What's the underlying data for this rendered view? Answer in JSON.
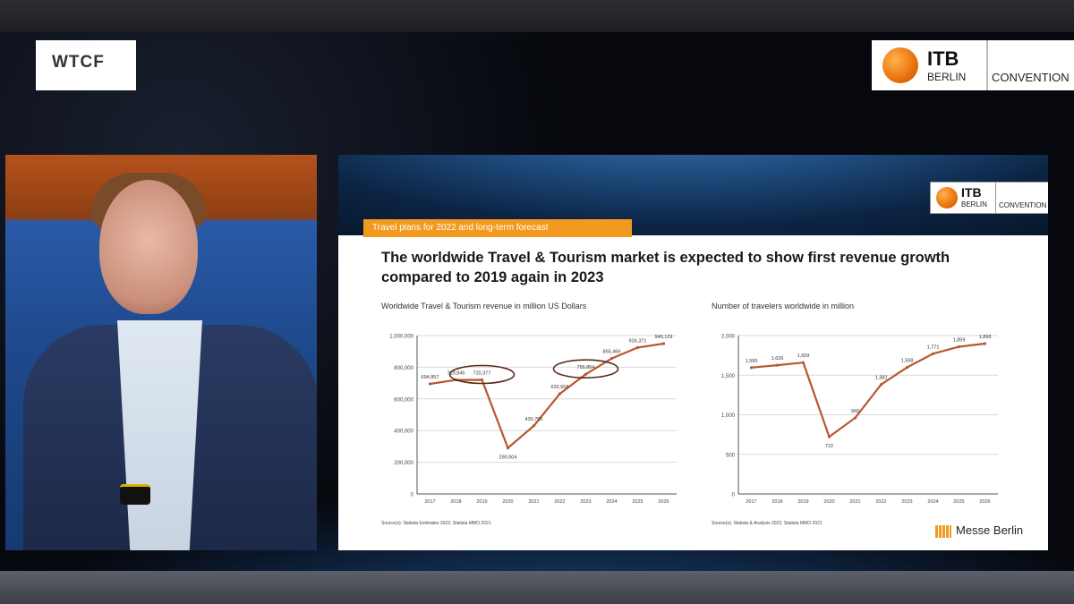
{
  "logos": {
    "wtcf": "WTCF",
    "itb": {
      "title": "ITB",
      "sub": "BERLIN",
      "convention": "CONVENTION"
    }
  },
  "slide": {
    "tag": "Travel plans for 2022 and long-term forecast",
    "headline": "The worldwide Travel & Tourism market is expected to show first revenue growth compared to 2019 again in 2023",
    "footer_brand": "Messe Berlin"
  },
  "chart_data": [
    {
      "type": "line",
      "title": "Worldwide Travel & Tourism revenue in million US Dollars",
      "x": [
        "2017",
        "2018",
        "2019",
        "2020",
        "2021",
        "2022",
        "2023",
        "2024",
        "2025",
        "2026"
      ],
      "series": [
        {
          "values": [
            694857,
            719845,
            720377,
            290504,
            430755,
            632658,
            755854,
            855466,
            924371,
            949129
          ]
        }
      ],
      "value_labels": [
        "694,857",
        "719,845",
        "720,377",
        "290,504",
        "430,755",
        "632,658",
        "755,854",
        "855,466",
        "924,371",
        "949,129"
      ],
      "yticks": [
        "0",
        "200,000",
        "400,000",
        "600,000",
        "800,000",
        "1,000,000"
      ],
      "ylim": [
        0,
        1000000
      ],
      "highlighted": [
        "2019",
        "2023"
      ],
      "color": "#b8572d",
      "source": "Source(s): Statista Estimates 2022; Statista MMO 2021"
    },
    {
      "type": "line",
      "title": "Number of travelers worldwide in million",
      "x": [
        "2017",
        "2018",
        "2019",
        "2020",
        "2021",
        "2022",
        "2023",
        "2024",
        "2025",
        "2026"
      ],
      "series": [
        {
          "values": [
            1595,
            1626,
            1659,
            722,
            960,
            1382,
            1598,
            1771,
            1859,
            1898
          ]
        }
      ],
      "value_labels": [
        "1,595",
        "1,626",
        "1,659",
        "722",
        "960",
        "1,382",
        "1,598",
        "1,771",
        "1,859",
        "1,898"
      ],
      "yticks": [
        "0",
        "500",
        "1,000",
        "1,500",
        "2,000"
      ],
      "ylim": [
        0,
        2000
      ],
      "color": "#b8572d",
      "source": "Source(s): Statista & Analysis 2022; Statista MMO 2021"
    }
  ]
}
